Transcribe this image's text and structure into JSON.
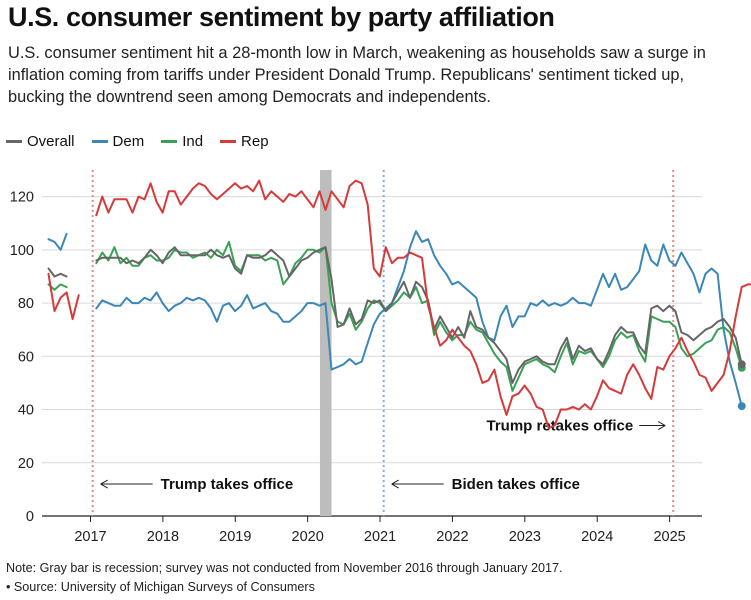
{
  "title": "U.S. consumer sentiment by party affiliation",
  "subtitle": "U.S. consumer sentiment hit a 28-month low in March, weakening as households saw a surge in inflation coming from tariffs under President Donald Trump. Republicans' sentiment ticked up, bucking the downtrend seen among Democrats and independents.",
  "notes": {
    "note": "Note: Gray bar is recession; survey was not conducted from November 2016 through January 2017.",
    "source": "• Source: University of Michigan Surveys of Consumers"
  },
  "colors": {
    "overall": "#666666",
    "dem": "#3a87b8",
    "ind": "#3aa055",
    "rep": "#d63a3a",
    "recession": "#bdbdbd",
    "event_line": "#e58a8a",
    "biden_line": "#7fb0da"
  },
  "chart_data": {
    "type": "line",
    "title": "U.S. consumer sentiment by party affiliation",
    "xlabel": "",
    "ylabel": "",
    "xlim": [
      2016.33,
      2025.42
    ],
    "ylim": [
      0,
      130
    ],
    "y_ticks": [
      0,
      20,
      40,
      60,
      80,
      100,
      120
    ],
    "x_ticks": [
      2017,
      2018,
      2019,
      2020,
      2021,
      2022,
      2023,
      2024,
      2025
    ],
    "x_tick_labels": [
      "2017",
      "2018",
      "2019",
      "2020",
      "2021",
      "2022",
      "2023",
      "2024",
      "2025"
    ],
    "grid": true,
    "legend_position": "top-left",
    "recession": {
      "start": 2020.17,
      "end": 2020.33
    },
    "events": [
      {
        "x": 2017.03,
        "label": "Trump takes office",
        "y": 12,
        "side": "right",
        "color": "#e58a8a"
      },
      {
        "x": 2021.05,
        "label": "Biden takes office",
        "y": 12,
        "side": "right",
        "color": "#7fb0da"
      },
      {
        "x": 2025.05,
        "label": "Trump retakes office",
        "y": 34,
        "side": "left",
        "color": "#e58a8a"
      }
    ],
    "series": [
      {
        "key": "overall",
        "name": "Overall",
        "end_label": "57",
        "segments": [
          {
            "x0": 2016.42,
            "values": [
              93,
              90,
              91,
              90
            ]
          },
          {
            "x0": 2017.08,
            "values": [
              96,
              97,
              97,
              97,
              97,
              95,
              96,
              95,
              97,
              100,
              98,
              95,
              99,
              101,
              98,
              98,
              98,
              98,
              98,
              100,
              98,
              97,
              98,
              93,
              91,
              98,
              97,
              97,
              98,
              100,
              98,
              96,
              90,
              93,
              96,
              97,
              99,
              100,
              101,
              89,
              71,
              72,
              78,
              72,
              74,
              81,
              80,
              81,
              77,
              80,
              84,
              88,
              82,
              88,
              86,
              81,
              70,
              75,
              71,
              67,
              71,
              67,
              77,
              71,
              70,
              67,
              65,
              62,
              59,
              50,
              55,
              58,
              59,
              60,
              58,
              57,
              57,
              63,
              67,
              59,
              64,
              62,
              63,
              59,
              57,
              62,
              68,
              71,
              69,
              69,
              64,
              61,
              78,
              79,
              77,
              79,
              77,
              69,
              68,
              66,
              68,
              70,
              71,
              73,
              74,
              71,
              67,
              57
            ]
          }
        ]
      },
      {
        "key": "dem",
        "name": "Dem",
        "end_label": "41.3",
        "segments": [
          {
            "x0": 2016.42,
            "values": [
              104,
              103,
              100,
              106
            ]
          },
          {
            "x0": 2017.08,
            "values": [
              78,
              81,
              80,
              79,
              79,
              82,
              80,
              80,
              82,
              81,
              84,
              80,
              77,
              79,
              80,
              82,
              81,
              82,
              81,
              78,
              73,
              79,
              80,
              77,
              79,
              83,
              78,
              79,
              80,
              77,
              76,
              73,
              73,
              75,
              77,
              80,
              80,
              79,
              80,
              55,
              56,
              57,
              59,
              57,
              58,
              65,
              72,
              76,
              78,
              80,
              86,
              92,
              101,
              107,
              103,
              104,
              98,
              94,
              91,
              87,
              88,
              86,
              84,
              82,
              73,
              67,
              66,
              75,
              79,
              71,
              75,
              75,
              80,
              79,
              81,
              79,
              80,
              79,
              80,
              82,
              80,
              80,
              79,
              85,
              91,
              86,
              91,
              85,
              86,
              89,
              92,
              102,
              96,
              94,
              102,
              96,
              94,
              99,
              95,
              91,
              84,
              91,
              93,
              91,
              70,
              58,
              50,
              41.3
            ]
          }
        ]
      },
      {
        "key": "ind",
        "name": "Ind",
        "end_label": "55.7",
        "segments": [
          {
            "x0": 2016.42,
            "values": [
              87,
              85,
              87,
              86
            ]
          },
          {
            "x0": 2017.08,
            "values": [
              95,
              99,
              96,
              101,
              95,
              97,
              94,
              94,
              97,
              98,
              96,
              96,
              97,
              100,
              99,
              99,
              97,
              98,
              99,
              97,
              100,
              98,
              103,
              94,
              92,
              98,
              98,
              98,
              96,
              97,
              96,
              87,
              90,
              95,
              97,
              100,
              100,
              99,
              101,
              80,
              73,
              72,
              76,
              70,
              73,
              78,
              81,
              80,
              77,
              79,
              81,
              84,
              82,
              86,
              80,
              81,
              68,
              73,
              69,
              66,
              68,
              68,
              73,
              70,
              69,
              65,
              61,
              58,
              56,
              47,
              52,
              57,
              58,
              59,
              57,
              56,
              54,
              60,
              65,
              57,
              62,
              61,
              62,
              59,
              56,
              60,
              66,
              69,
              67,
              68,
              62,
              58,
              75,
              74,
              73,
              73,
              71,
              63,
              60,
              61,
              63,
              65,
              66,
              70,
              71,
              69,
              63,
              55.7
            ]
          }
        ]
      },
      {
        "key": "rep",
        "name": "Rep",
        "end_label": "87.4",
        "segments": [
          {
            "x0": 2016.42,
            "values": [
              91,
              77,
              82,
              84,
              74,
              83
            ]
          },
          {
            "x0": 2017.08,
            "values": [
              113,
              120,
              114,
              119,
              119,
              119,
              114,
              120,
              119,
              125,
              118,
              114,
              122,
              122,
              117,
              120,
              123,
              125,
              124,
              121,
              119,
              121,
              123,
              125,
              123,
              124,
              122,
              126,
              119,
              122,
              120,
              118,
              121,
              120,
              122,
              119,
              116,
              122,
              115,
              122,
              119,
              116,
              124,
              126,
              125,
              117,
              93,
              90,
              101,
              95,
              97,
              97,
              99,
              98,
              97,
              79,
              71,
              64,
              66,
              70,
              67,
              64,
              62,
              57,
              50,
              51,
              55,
              45,
              38,
              45,
              46,
              49,
              46,
              41,
              40,
              33,
              34,
              40,
              40,
              41,
              40,
              42,
              40,
              45,
              51,
              48,
              47,
              46,
              53,
              57,
              53,
              48,
              44,
              56,
              55,
              60,
              63,
              67,
              62,
              58,
              53,
              52,
              47,
              50,
              53,
              62,
              75,
              86,
              87,
              87,
              87.4
            ]
          }
        ]
      }
    ]
  }
}
